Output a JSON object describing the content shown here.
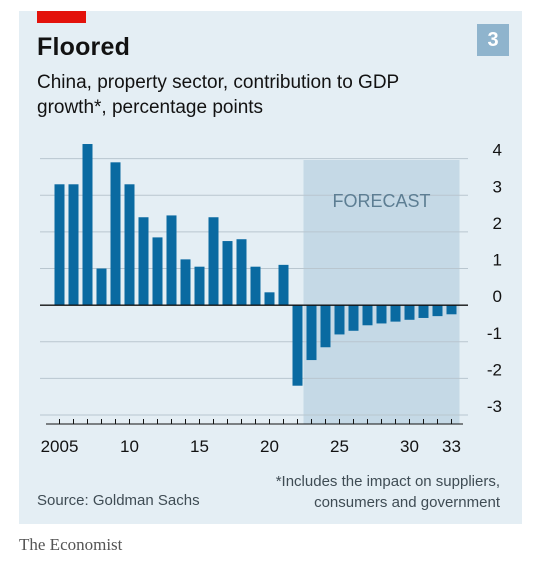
{
  "header": {
    "title": "Floored",
    "subtitle": "China, property sector, contribution to GDP growth*, percentage points",
    "chart_number": "3"
  },
  "footer": {
    "source": "Source: Goldman Sachs",
    "footnote": "*Includes the impact on suppliers, consumers and government",
    "brand": "The Economist"
  },
  "colors": {
    "bar": "#0a6aa1",
    "forecast_shade": "#c5d9e6",
    "panel_background": "#e4eef4",
    "accent_red": "#e3120b"
  },
  "chart_data": {
    "type": "bar",
    "title": "Floored",
    "subtitle": "China, property sector, contribution to GDP growth*, percentage points",
    "x": [
      2005,
      2006,
      2007,
      2008,
      2009,
      2010,
      2011,
      2012,
      2013,
      2014,
      2015,
      2016,
      2017,
      2018,
      2019,
      2020,
      2021,
      2022,
      2023,
      2024,
      2025,
      2026,
      2027,
      2028,
      2029,
      2030,
      2031,
      2032,
      2033
    ],
    "values": [
      3.3,
      3.3,
      4.4,
      1.0,
      3.9,
      3.3,
      2.4,
      1.85,
      2.45,
      1.25,
      1.05,
      2.4,
      1.75,
      1.8,
      1.05,
      0.35,
      1.1,
      -2.2,
      -1.5,
      -1.15,
      -0.8,
      -0.7,
      -0.55,
      -0.5,
      -0.45,
      -0.4,
      -0.35,
      -0.3,
      -0.25
    ],
    "x_tick_labels": [
      {
        "x": 2005,
        "label": "2005"
      },
      {
        "x": 2010,
        "label": "10"
      },
      {
        "x": 2015,
        "label": "15"
      },
      {
        "x": 2020,
        "label": "20"
      },
      {
        "x": 2025,
        "label": "25"
      },
      {
        "x": 2030,
        "label": "30"
      },
      {
        "x": 2033,
        "label": "33"
      }
    ],
    "y_ticks": [
      4,
      3,
      2,
      1,
      0,
      -1,
      -2,
      -3
    ],
    "y_tick_labels": [
      "4",
      "3",
      "2",
      "1",
      "0",
      "-1",
      "-2",
      "-3"
    ],
    "ylim": [
      -3,
      4
    ],
    "xlim": [
      2005,
      2033
    ],
    "forecast": {
      "label": "FORECAST",
      "start": 2023,
      "end": 2033
    },
    "grid": true,
    "y_axis_side": "right"
  }
}
